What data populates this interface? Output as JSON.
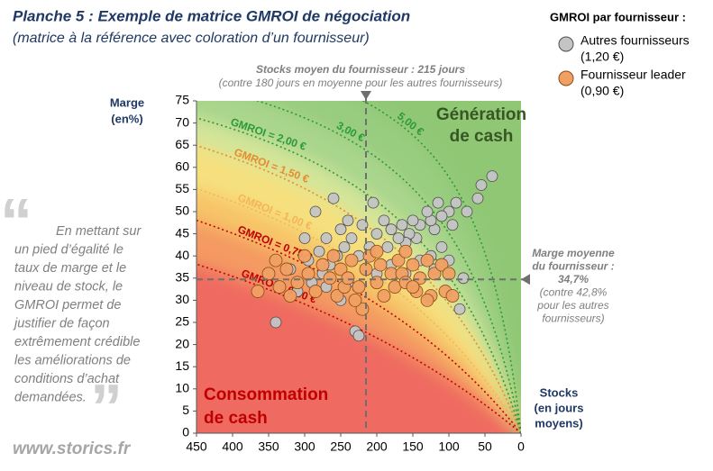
{
  "chart_data": {
    "type": "scatter",
    "title": "Planche 5 : Exemple de matrice GMROI de négociation",
    "subtitle": "(matrice à la référence avec coloration d’un fournisseur)",
    "legend_title": "GMROI par fournisseur :",
    "y_label": [
      "Marge",
      "(en%)"
    ],
    "x_label": [
      "Stocks",
      "(en jours",
      "moyens)"
    ],
    "xlim": [
      450,
      0
    ],
    "xticks": [
      450,
      400,
      350,
      300,
      250,
      200,
      150,
      100,
      50,
      0
    ],
    "ylim": [
      0,
      75
    ],
    "yticks": [
      0,
      5,
      10,
      15,
      20,
      25,
      30,
      35,
      40,
      45,
      50,
      55,
      60,
      65,
      70,
      75
    ],
    "ref_x": 215,
    "ref_y": 34.7,
    "ref_x_label": [
      "Stocks moyen du fournisseur : 215 jours",
      "(contre 180 jours en moyenne pour les autres fournisseurs)"
    ],
    "ref_y_label": [
      "Marge moyenne",
      "du fournisseur :",
      "34,7%",
      "(contre 42,8%",
      "pour les autres",
      "fournisseurs)"
    ],
    "quadrant_top": [
      "Génération",
      "de cash"
    ],
    "quadrant_bottom": [
      "Consommation",
      "de cash"
    ],
    "background_color": "#8fc774",
    "iso_curves": [
      {
        "value": 0.5,
        "label": "GMROI = 0,50 €",
        "color": "#c00000",
        "band_color": "#ef6a60"
      },
      {
        "value": 0.75,
        "label": "GMROI = 0,75 €",
        "color": "#c00000",
        "band_color": "#f49a62"
      },
      {
        "value": 1,
        "label": "GMROI = 1,00 €",
        "color": "#f5b45a",
        "band_color": "#f7c468"
      },
      {
        "value": 1.5,
        "label": "GMROI = 1,50 €",
        "color": "#e88a2e",
        "band_color": "#f6e07e"
      },
      {
        "value": 2,
        "label": "GMROI = 2,00 €",
        "color": "#2a9a3a",
        "band_color": "#d3e59a"
      },
      {
        "value": 3,
        "label": "3,00 €",
        "color": "#2a9a3a",
        "band_color": "#a9d58c"
      },
      {
        "value": 5,
        "label": "5,00 €",
        "color": "#2a9a3a",
        "band_color": "#98cc7e"
      }
    ],
    "series": [
      {
        "name": "Autres fournisseurs",
        "note": "(1,20 €)",
        "color": "#c4c4c4",
        "x": [
          40,
          55,
          60,
          75,
          90,
          95,
          100,
          110,
          115,
          120,
          125,
          130,
          140,
          145,
          150,
          155,
          160,
          165,
          170,
          180,
          185,
          190,
          200,
          205,
          210,
          220,
          225,
          235,
          240,
          245,
          250,
          255,
          260,
          265,
          270,
          275,
          280,
          285,
          290,
          295,
          300,
          310,
          250,
          240,
          230,
          225,
          270,
          320,
          340,
          180,
          140,
          110,
          100,
          85,
          200,
          160,
          125,
          80,
          120
        ],
        "values": [
          58,
          56,
          53,
          50,
          52,
          47,
          50,
          49,
          52,
          46,
          48,
          50,
          47,
          44,
          48,
          45,
          43,
          47,
          44,
          46,
          42,
          48,
          45,
          52,
          42,
          47,
          40,
          44,
          48,
          42,
          46,
          40,
          53,
          38,
          44,
          36,
          41,
          50,
          34,
          39,
          44,
          32,
          30,
          34,
          23,
          22,
          33,
          37,
          25,
          38,
          39,
          42,
          39,
          28,
          36,
          36,
          40,
          35,
          37
        ]
      },
      {
        "name": "Fournisseur leader",
        "note": "(0,90 €)",
        "color": "#f0a064",
        "x": [
          365,
          350,
          340,
          335,
          325,
          320,
          310,
          300,
          295,
          285,
          275,
          265,
          255,
          250,
          245,
          240,
          235,
          225,
          220,
          215,
          210,
          200,
          195,
          190,
          180,
          175,
          170,
          165,
          160,
          150,
          145,
          140,
          130,
          125,
          120,
          110,
          105,
          100,
          95,
          230,
          200,
          160,
          150,
          130,
          260
        ],
        "values": [
          32,
          36,
          39,
          33,
          37,
          31,
          34,
          40,
          36,
          32,
          38,
          35,
          31,
          37,
          33,
          35,
          39,
          33,
          28,
          37,
          40,
          34,
          38,
          31,
          36,
          33,
          39,
          36,
          34,
          38,
          32,
          35,
          39,
          31,
          36,
          38,
          32,
          36,
          31,
          30,
          41,
          41,
          33,
          30,
          40
        ]
      }
    ],
    "quote_open": "“",
    "quote_close": "”",
    "quote": [
      "En mettant sur",
      "un pied d’égalité le",
      "taux de marge et le",
      "niveau de stock, le",
      "GMROI permet de",
      "justifier de façon",
      "extrêmement crédible",
      "les améliorations de",
      "conditions d’achat",
      "demandées."
    ],
    "footer": "www.storics.fr"
  }
}
